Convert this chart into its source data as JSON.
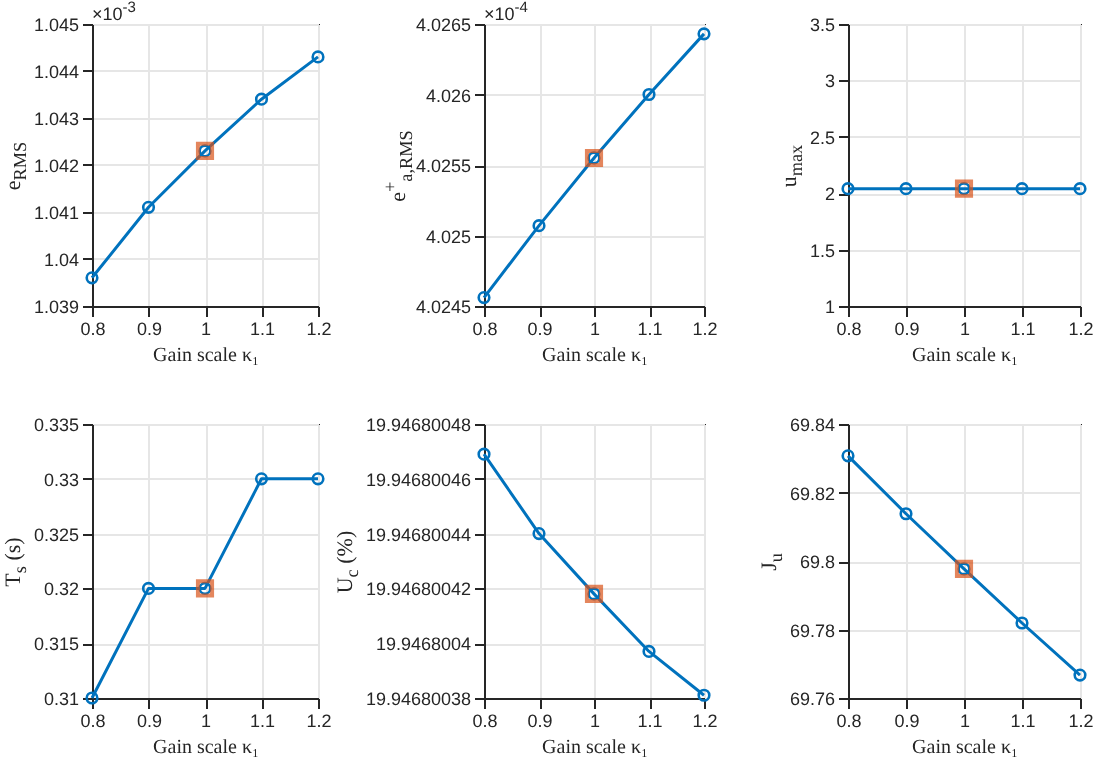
{
  "chart_data": [
    {
      "type": "line",
      "ylabel": "e$_{RMS}$",
      "xlabel": "Gain scale κ₁",
      "annotations": [
        "×10$^{-3}$"
      ],
      "x": [
        0.8,
        0.9,
        1,
        1.1,
        1.2
      ],
      "xlim": [
        0.8,
        1.2
      ],
      "xticks": [
        0.8,
        0.9,
        1,
        1.1,
        1.2
      ],
      "ylim": [
        1.039,
        1.045
      ],
      "yticks": [
        1.039,
        1.04,
        1.041,
        1.042,
        1.043,
        1.044,
        1.045
      ],
      "grid": true,
      "marker": "circle",
      "series": [
        {
          "color": "#0072bd",
          "values": [
            1.0396,
            1.0411,
            1.0423,
            1.0434,
            1.0443
          ]
        },
        {
          "type": "scatter",
          "marker": "square",
          "color": "#d95319",
          "values": [
            null,
            null,
            1.0423,
            null,
            null
          ]
        }
      ]
    },
    {
      "type": "line",
      "ylabel": "e$^{+}$$_{a,RMS}$",
      "xlabel": "Gain scale κ₁",
      "annotations": [
        "×10$^{-4}$"
      ],
      "x": [
        0.8,
        0.9,
        1,
        1.1,
        1.2
      ],
      "xlim": [
        0.8,
        1.2
      ],
      "xticks": [
        0.8,
        0.9,
        1,
        1.1,
        1.2
      ],
      "ylim": [
        4.0245,
        4.0265
      ],
      "yticks": [
        4.0245,
        4.025,
        4.0255,
        4.026,
        4.0265
      ],
      "grid": true,
      "marker": "circle",
      "series": [
        {
          "color": "#0072bd",
          "values": [
            4.02456,
            4.02507,
            4.02555,
            4.026,
            4.02643
          ]
        },
        {
          "type": "scatter",
          "marker": "square",
          "color": "#d95319",
          "values": [
            null,
            null,
            4.02555,
            null,
            null
          ]
        }
      ]
    },
    {
      "type": "line",
      "ylabel": "u$_{max}$",
      "xlabel": "Gain scale κ₁",
      "x": [
        0.8,
        0.9,
        1,
        1.1,
        1.2
      ],
      "xlim": [
        0.8,
        1.2
      ],
      "xticks": [
        0.8,
        0.9,
        1,
        1.1,
        1.2
      ],
      "ylim": [
        1,
        3.5
      ],
      "yticks": [
        1,
        1.5,
        2,
        2.5,
        3,
        3.5
      ],
      "grid": true,
      "marker": "circle",
      "series": [
        {
          "color": "#0072bd",
          "values": [
            2.04,
            2.04,
            2.04,
            2.04,
            2.04
          ]
        },
        {
          "type": "scatter",
          "marker": "square",
          "color": "#d95319",
          "values": [
            null,
            null,
            2.04,
            null,
            null
          ]
        }
      ]
    },
    {
      "type": "line",
      "ylabel": "T$_{s}$ (s)",
      "xlabel": "Gain scale κ₁",
      "x": [
        0.8,
        0.9,
        1,
        1.1,
        1.2
      ],
      "xlim": [
        0.8,
        1.2
      ],
      "xticks": [
        0.8,
        0.9,
        1,
        1.1,
        1.2
      ],
      "ylim": [
        0.31,
        0.335
      ],
      "yticks": [
        0.31,
        0.315,
        0.32,
        0.325,
        0.33,
        0.335
      ],
      "grid": true,
      "marker": "circle",
      "series": [
        {
          "color": "#0072bd",
          "values": [
            0.31,
            0.32,
            0.32,
            0.33,
            0.33
          ]
        },
        {
          "type": "scatter",
          "marker": "square",
          "color": "#d95319",
          "values": [
            null,
            null,
            0.32,
            null,
            null
          ]
        }
      ]
    },
    {
      "type": "line",
      "ylabel": "U$_{c}$ (%)",
      "xlabel": "Gain scale κ₁",
      "x": [
        0.8,
        0.9,
        1,
        1.1,
        1.2
      ],
      "xlim": [
        0.8,
        1.2
      ],
      "xticks": [
        0.8,
        0.9,
        1,
        1.1,
        1.2
      ],
      "ylim": [
        19.94680038,
        19.94680048
      ],
      "yticks": [
        19.94680038,
        19.9468004,
        19.94680042,
        19.94680044,
        19.94680046,
        19.94680048
      ],
      "grid": true,
      "marker": "circle",
      "series": [
        {
          "color": "#0072bd",
          "values": [
            19.946800469,
            19.94680044,
            19.946800418,
            19.946800397,
            19.946800381
          ]
        },
        {
          "type": "scatter",
          "marker": "square",
          "color": "#d95319",
          "values": [
            null,
            null,
            19.946800418,
            null,
            null
          ]
        }
      ]
    },
    {
      "type": "line",
      "ylabel": "J$_{u}$",
      "xlabel": "Gain scale κ₁",
      "x": [
        0.8,
        0.9,
        1,
        1.1,
        1.2
      ],
      "xlim": [
        0.8,
        1.2
      ],
      "xticks": [
        0.8,
        0.9,
        1,
        1.1,
        1.2
      ],
      "ylim": [
        69.76,
        69.84
      ],
      "yticks": [
        69.76,
        69.78,
        69.8,
        69.82,
        69.84
      ],
      "grid": true,
      "marker": "circle",
      "series": [
        {
          "color": "#0072bd",
          "values": [
            69.8307,
            69.8138,
            69.7977,
            69.7819,
            69.7667
          ]
        },
        {
          "type": "scatter",
          "marker": "square",
          "color": "#d95319",
          "values": [
            null,
            null,
            69.7977,
            null,
            null
          ]
        }
      ]
    }
  ]
}
